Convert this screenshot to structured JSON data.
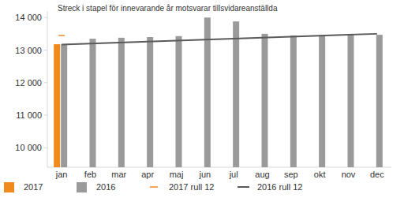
{
  "chart_data": {
    "type": "bar",
    "title": "Streck i stapel för innevarande år motsvarar tillsvidareanställda",
    "categories": [
      "jan",
      "feb",
      "mar",
      "apr",
      "maj",
      "jun",
      "jul",
      "aug",
      "sep",
      "okt",
      "nov",
      "dec"
    ],
    "series": [
      {
        "name": "2017",
        "type": "bar",
        "color": "#f08a1c",
        "values": [
          13180,
          null,
          null,
          null,
          null,
          null,
          null,
          null,
          null,
          null,
          null,
          null
        ]
      },
      {
        "name": "2016",
        "type": "bar",
        "color": "#9a9a9a",
        "values": [
          13180,
          13350,
          13380,
          13400,
          13430,
          14000,
          13880,
          13500,
          13450,
          13460,
          13470,
          13470
        ]
      },
      {
        "name": "2017 rull 12",
        "type": "line",
        "color": "#f5a45c",
        "marker": "dash",
        "values": [
          13450,
          null,
          null,
          null,
          null,
          null,
          null,
          null,
          null,
          null,
          null,
          null
        ]
      },
      {
        "name": "2016 rull 12",
        "type": "line",
        "color": "#5a5a5a",
        "values": [
          13170,
          13200,
          13230,
          13260,
          13290,
          13320,
          13350,
          13380,
          13410,
          13440,
          13470,
          13500
        ]
      }
    ],
    "ylim": [
      9400,
      14200
    ],
    "yticks": [
      {
        "value": 10000,
        "label": "10 000"
      },
      {
        "value": 11000,
        "label": "11 000"
      },
      {
        "value": 12000,
        "label": "12 000"
      },
      {
        "value": 13000,
        "label": "13 000"
      },
      {
        "value": 14000,
        "label": "14 000"
      }
    ],
    "grid": false,
    "legend": "bottom"
  }
}
